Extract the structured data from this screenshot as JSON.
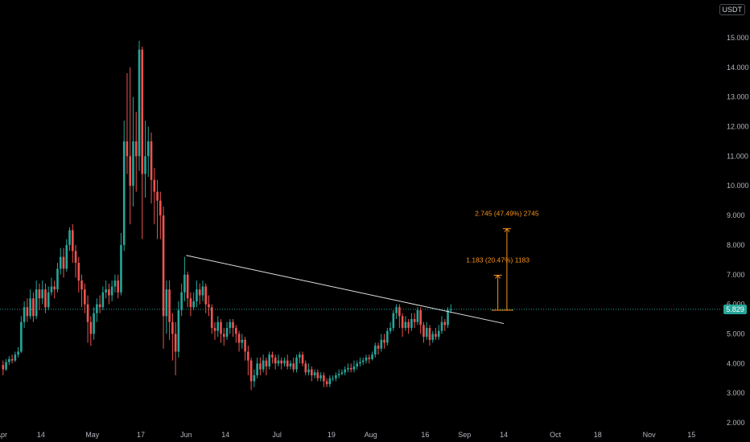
{
  "chart_data": {
    "type": "candlestick",
    "unit": "USDT",
    "current_price": "5.829",
    "ylim": [
      2.0,
      16.0
    ],
    "y_ticks": [
      "2.000",
      "3.000",
      "4.000",
      "5.000",
      "6.000",
      "7.000",
      "8.000",
      "9.000",
      "10.000",
      "11.000",
      "12.000",
      "13.000",
      "14.000",
      "15.000"
    ],
    "x_ticks": [
      "Apr",
      "14",
      "May",
      "17",
      "Jun",
      "14",
      "Jul",
      "19",
      "Aug",
      "16",
      "Sep",
      "14",
      "Oct",
      "18",
      "Nov",
      "15"
    ],
    "x_tick_days": [
      0,
      13,
      30,
      46,
      61,
      74,
      91,
      109,
      122,
      140,
      153,
      166,
      183,
      197,
      214,
      228
    ],
    "candles_day0": "Apr 1",
    "candles": [
      [
        3.95,
        3.8,
        4.1,
        3.6
      ],
      [
        3.8,
        4.05,
        4.15,
        3.75
      ],
      [
        4.05,
        4.15,
        4.25,
        3.95
      ],
      [
        4.15,
        4.1,
        4.3,
        4.0
      ],
      [
        4.1,
        4.3,
        4.4,
        4.05
      ],
      [
        4.3,
        4.4,
        4.55,
        4.2
      ],
      [
        4.4,
        5.4,
        5.6,
        4.35
      ],
      [
        5.4,
        5.9,
        6.1,
        5.2
      ],
      [
        5.9,
        5.6,
        6.2,
        5.4
      ],
      [
        5.6,
        6.2,
        6.5,
        5.5
      ],
      [
        6.2,
        5.6,
        6.4,
        5.4
      ],
      [
        5.6,
        6.5,
        6.8,
        5.5
      ],
      [
        6.5,
        6.2,
        6.7,
        5.8
      ],
      [
        6.2,
        6.5,
        6.8,
        6.0
      ],
      [
        6.5,
        5.9,
        6.7,
        5.7
      ],
      [
        5.9,
        6.4,
        6.6,
        5.8
      ],
      [
        6.4,
        6.6,
        6.9,
        6.3
      ],
      [
        6.6,
        6.5,
        6.8,
        6.2
      ],
      [
        6.5,
        7.2,
        7.4,
        6.4
      ],
      [
        7.2,
        7.6,
        7.9,
        7.0
      ],
      [
        7.6,
        7.2,
        7.9,
        6.9
      ],
      [
        7.2,
        8.0,
        8.2,
        7.1
      ],
      [
        8.0,
        8.5,
        8.6,
        7.8
      ],
      [
        8.5,
        7.8,
        8.7,
        7.4
      ],
      [
        7.8,
        7.4,
        8.0,
        6.9
      ],
      [
        7.4,
        6.8,
        7.6,
        6.4
      ],
      [
        6.8,
        6.5,
        7.0,
        5.9
      ],
      [
        6.5,
        6.0,
        6.7,
        5.7
      ],
      [
        6.0,
        5.4,
        6.3,
        4.7
      ],
      [
        5.4,
        5.0,
        5.6,
        4.6
      ],
      [
        5.0,
        5.7,
        5.9,
        4.8
      ],
      [
        5.7,
        6.0,
        6.2,
        5.4
      ],
      [
        6.0,
        5.9,
        6.3,
        5.7
      ],
      [
        5.9,
        6.4,
        6.6,
        5.8
      ],
      [
        6.4,
        6.5,
        6.8,
        6.2
      ],
      [
        6.5,
        6.3,
        6.7,
        6.0
      ],
      [
        6.3,
        6.6,
        6.8,
        6.1
      ],
      [
        6.6,
        6.8,
        7.0,
        6.4
      ],
      [
        6.8,
        6.4,
        7.0,
        6.2
      ],
      [
        6.4,
        8.0,
        8.4,
        6.3
      ],
      [
        8.0,
        11.5,
        12.2,
        7.8
      ],
      [
        11.5,
        11.0,
        13.8,
        10.4
      ],
      [
        11.0,
        10.0,
        14.0,
        8.7
      ],
      [
        10.0,
        11.5,
        13.0,
        9.3
      ],
      [
        11.5,
        11.0,
        12.5,
        9.8
      ],
      [
        11.0,
        14.6,
        14.9,
        10.5
      ],
      [
        14.6,
        10.4,
        14.7,
        8.2
      ],
      [
        10.4,
        11.0,
        12.2,
        9.6
      ],
      [
        11.0,
        11.5,
        12.0,
        10.3
      ],
      [
        11.5,
        10.2,
        11.8,
        9.4
      ],
      [
        10.2,
        9.8,
        10.6,
        8.7
      ],
      [
        9.8,
        9.5,
        10.2,
        8.2
      ],
      [
        9.5,
        9.0,
        9.8,
        8.2
      ],
      [
        9.0,
        5.6,
        9.3,
        4.5
      ],
      [
        5.6,
        6.5,
        6.8,
        5.0
      ],
      [
        6.5,
        5.4,
        6.8,
        4.8
      ],
      [
        5.4,
        5.0,
        5.7,
        4.1
      ],
      [
        5.0,
        4.4,
        5.4,
        3.6
      ],
      [
        4.4,
        5.8,
        6.1,
        4.2
      ],
      [
        5.8,
        6.4,
        6.7,
        5.6
      ],
      [
        6.4,
        7.0,
        7.6,
        6.1
      ],
      [
        7.0,
        6.2,
        7.1,
        5.9
      ],
      [
        6.2,
        5.9,
        6.4,
        5.6
      ],
      [
        5.9,
        6.1,
        6.4,
        5.8
      ],
      [
        6.1,
        6.5,
        6.8,
        5.9
      ],
      [
        6.5,
        6.3,
        6.7,
        6.0
      ],
      [
        6.3,
        6.6,
        6.8,
        6.1
      ],
      [
        6.6,
        6.0,
        6.7,
        5.7
      ],
      [
        6.0,
        5.9,
        6.3,
        5.6
      ],
      [
        5.9,
        5.2,
        6.0,
        5.0
      ],
      [
        5.2,
        5.1,
        5.4,
        4.8
      ],
      [
        5.1,
        5.4,
        5.6,
        4.9
      ],
      [
        5.4,
        5.0,
        5.5,
        4.7
      ],
      [
        5.0,
        4.9,
        5.2,
        4.6
      ],
      [
        4.9,
        5.2,
        5.4,
        4.8
      ],
      [
        5.2,
        5.4,
        5.5,
        5.0
      ],
      [
        5.4,
        5.2,
        5.5,
        4.9
      ],
      [
        5.2,
        5.0,
        5.3,
        4.7
      ],
      [
        5.0,
        4.7,
        5.1,
        4.4
      ],
      [
        4.7,
        4.8,
        5.0,
        4.5
      ],
      [
        4.8,
        4.4,
        4.9,
        4.1
      ],
      [
        4.4,
        4.1,
        4.6,
        3.6
      ],
      [
        4.1,
        3.4,
        4.2,
        3.1
      ],
      [
        3.4,
        3.6,
        3.8,
        3.2
      ],
      [
        3.6,
        4.0,
        4.2,
        3.5
      ],
      [
        4.0,
        3.8,
        4.2,
        3.6
      ],
      [
        3.8,
        4.1,
        4.3,
        3.7
      ],
      [
        4.1,
        3.9,
        4.2,
        3.6
      ],
      [
        3.9,
        4.3,
        4.4,
        3.8
      ],
      [
        4.3,
        4.2,
        4.4,
        4.0
      ],
      [
        4.2,
        4.0,
        4.3,
        3.8
      ],
      [
        4.0,
        4.1,
        4.3,
        3.9
      ],
      [
        4.1,
        4.0,
        4.2,
        3.8
      ],
      [
        4.0,
        4.1,
        4.2,
        3.9
      ],
      [
        4.1,
        3.9,
        4.3,
        3.8
      ],
      [
        3.9,
        4.0,
        4.1,
        3.8
      ],
      [
        4.0,
        3.8,
        4.2,
        3.7
      ],
      [
        3.8,
        4.2,
        4.3,
        3.7
      ],
      [
        4.2,
        4.3,
        4.4,
        4.0
      ],
      [
        4.3,
        4.0,
        4.4,
        3.9
      ],
      [
        4.0,
        3.7,
        4.1,
        3.6
      ],
      [
        3.7,
        3.8,
        4.0,
        3.6
      ],
      [
        3.8,
        3.6,
        3.9,
        3.4
      ],
      [
        3.6,
        3.7,
        3.8,
        3.5
      ],
      [
        3.7,
        3.5,
        3.8,
        3.4
      ],
      [
        3.5,
        3.6,
        3.7,
        3.4
      ],
      [
        3.6,
        3.4,
        3.7,
        3.2
      ],
      [
        3.4,
        3.3,
        3.5,
        3.2
      ],
      [
        3.3,
        3.5,
        3.6,
        3.2
      ],
      [
        3.5,
        3.5,
        3.6,
        3.4
      ],
      [
        3.5,
        3.6,
        3.7,
        3.4
      ],
      [
        3.6,
        3.65,
        3.8,
        3.5
      ],
      [
        3.65,
        3.7,
        3.8,
        3.6
      ],
      [
        3.7,
        3.8,
        3.9,
        3.6
      ],
      [
        3.8,
        3.85,
        4.0,
        3.7
      ],
      [
        3.85,
        3.8,
        4.0,
        3.7
      ],
      [
        3.8,
        3.9,
        4.1,
        3.7
      ],
      [
        3.9,
        4.0,
        4.1,
        3.8
      ],
      [
        4.0,
        4.05,
        4.2,
        3.9
      ],
      [
        4.05,
        4.1,
        4.2,
        3.95
      ],
      [
        4.1,
        4.2,
        4.3,
        4.0
      ],
      [
        4.2,
        4.15,
        4.3,
        4.0
      ],
      [
        4.15,
        4.3,
        4.4,
        4.1
      ],
      [
        4.3,
        4.6,
        4.7,
        4.2
      ],
      [
        4.6,
        4.5,
        4.7,
        4.3
      ],
      [
        4.5,
        4.8,
        5.0,
        4.4
      ],
      [
        4.8,
        4.7,
        5.0,
        4.5
      ],
      [
        4.7,
        5.1,
        5.2,
        4.6
      ],
      [
        5.1,
        5.2,
        5.4,
        5.0
      ],
      [
        5.2,
        5.7,
        5.8,
        5.1
      ],
      [
        5.7,
        5.9,
        6.0,
        5.5
      ],
      [
        5.9,
        5.6,
        6.0,
        5.2
      ],
      [
        5.6,
        5.2,
        5.7,
        4.9
      ],
      [
        5.2,
        5.4,
        5.6,
        5.1
      ],
      [
        5.4,
        5.2,
        5.5,
        5.0
      ],
      [
        5.2,
        5.5,
        5.7,
        5.1
      ],
      [
        5.5,
        5.4,
        5.7,
        5.2
      ],
      [
        5.4,
        5.8,
        5.9,
        5.3
      ],
      [
        5.8,
        5.3,
        5.9,
        5.0
      ],
      [
        5.3,
        4.9,
        5.4,
        4.7
      ],
      [
        4.9,
        5.2,
        5.4,
        4.8
      ],
      [
        5.2,
        4.8,
        5.3,
        4.6
      ],
      [
        4.8,
        5.0,
        5.1,
        4.7
      ],
      [
        5.0,
        4.9,
        5.2,
        4.8
      ],
      [
        4.9,
        5.1,
        5.3,
        4.8
      ],
      [
        5.1,
        5.4,
        5.6,
        5.0
      ],
      [
        5.4,
        5.3,
        5.5,
        5.1
      ],
      [
        5.3,
        5.8,
        5.9,
        5.2
      ],
      [
        5.8,
        5.829,
        6.0,
        5.7
      ]
    ],
    "trendline": {
      "from": {
        "day": 61,
        "price": 7.65
      },
      "to": {
        "day": 166,
        "price": 5.35
      }
    },
    "measurements": [
      {
        "day": 164,
        "base": 5.8,
        "top": 6.98,
        "label": "1.183 (20.47%) 1183"
      },
      {
        "day": 167,
        "base": 5.8,
        "top": 8.55,
        "label": "2.745 (47.49%) 2745"
      }
    ],
    "colors": {
      "up": "#26a69a",
      "down": "#ef5350",
      "trendline": "#e0e0e0",
      "measure": "#f7931a",
      "price_line": "#26a69a"
    }
  }
}
